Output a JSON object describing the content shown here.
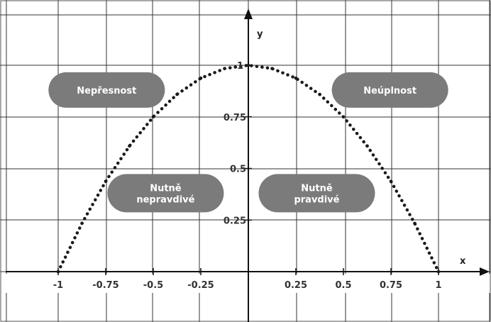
{
  "chart_data": {
    "type": "line",
    "xlabel": "x",
    "ylabel": "y",
    "xlim": [
      -1,
      1
    ],
    "ylim": [
      0,
      1
    ],
    "grid": true,
    "x_ticks": [
      {
        "value": -1,
        "label": "-1"
      },
      {
        "value": -0.75,
        "label": "-0.75"
      },
      {
        "value": -0.5,
        "label": "-0.5"
      },
      {
        "value": -0.25,
        "label": "-0.25"
      },
      {
        "value": 0.25,
        "label": "0.25"
      },
      {
        "value": 0.5,
        "label": "0.5"
      },
      {
        "value": 0.75,
        "label": "0.75"
      },
      {
        "value": 1,
        "label": "1"
      }
    ],
    "y_ticks": [
      {
        "value": 0.25,
        "label": "0.25"
      },
      {
        "value": 0.5,
        "label": "0.5"
      },
      {
        "value": 0.75,
        "label": "0.75"
      },
      {
        "value": 1,
        "label": "1"
      }
    ],
    "series": [
      {
        "style": "dotted",
        "color": "#1a1a1a",
        "x": [
          -1,
          -0.875,
          -0.75,
          -0.625,
          -0.5,
          -0.375,
          -0.25,
          -0.125,
          0,
          0.125,
          0.25,
          0.375,
          0.5,
          0.625,
          0.75,
          0.875,
          1
        ],
        "y": [
          0,
          0.234,
          0.4375,
          0.609,
          0.75,
          0.859,
          0.9375,
          0.984,
          1,
          0.984,
          0.9375,
          0.859,
          0.75,
          0.609,
          0.4375,
          0.234,
          0
        ]
      }
    ],
    "annotations": [
      {
        "text": [
          "Nepřesnost"
        ],
        "x": -0.745,
        "y": 0.88
      },
      {
        "text": [
          "Neúplnost"
        ],
        "x": 0.745,
        "y": 0.88
      },
      {
        "text": [
          "Nutně",
          "nepravdivé"
        ],
        "x": -0.435,
        "y": 0.38
      },
      {
        "text": [
          "Nutně",
          "pravdivé"
        ],
        "x": 0.36,
        "y": 0.38
      }
    ],
    "colors": {
      "label_fill": "#7b7b7b",
      "grid": "#333333",
      "axis": "#111111"
    }
  }
}
